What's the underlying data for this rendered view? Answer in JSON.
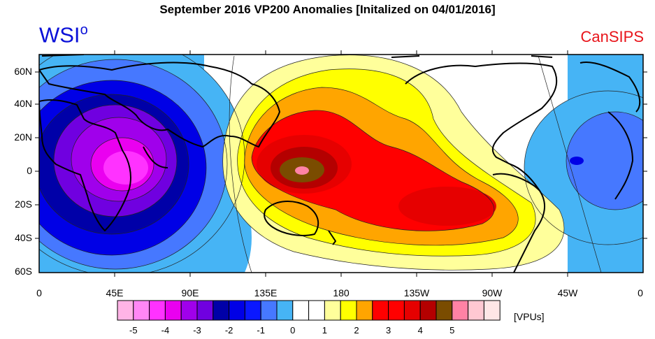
{
  "title": "September 2016 VP200 Anomalies [Initalized on 04/01/2016]",
  "brand_left": "WSI",
  "brand_left_mark": "o",
  "brand_right": "CanSIPS",
  "map": {
    "lat_labels": [
      "60N",
      "40N",
      "20N",
      "0",
      "20S",
      "40S",
      "60S"
    ],
    "lon_labels": [
      "0",
      "45E",
      "90E",
      "135E",
      "180",
      "135W",
      "90W",
      "45W",
      "0"
    ],
    "colorbar": {
      "colors": [
        "#ffb4e6",
        "#ff87f5",
        "#ff32ff",
        "#ea00f0",
        "#a000eb",
        "#7000e0",
        "#0000a8",
        "#0000e6",
        "#0a18ff",
        "#4678ff",
        "#46b4f5",
        "#ffffff",
        "#ffffff",
        "#ffff9b",
        "#ffff00",
        "#ffa500",
        "#ff0000",
        "#ff0000",
        "#e60000",
        "#b40000",
        "#7a4c00",
        "#ff82a5",
        "#ffc8d2",
        "#ffe6e6"
      ],
      "tick_labels": [
        "-5",
        "-4",
        "-3",
        "-2",
        "-1",
        "0",
        "1",
        "2",
        "3",
        "4",
        "5"
      ],
      "units": "[VPUs]"
    }
  }
}
